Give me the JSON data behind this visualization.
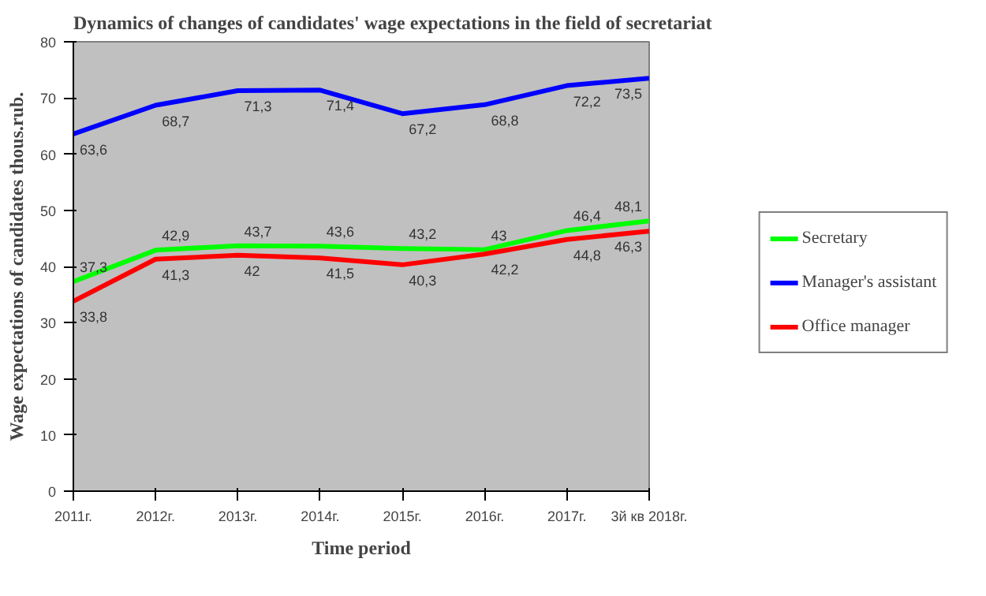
{
  "chart_data": {
    "type": "line",
    "title": "Dynamics of changes of candidates' wage expectations in the field of secretariat",
    "xlabel": "Time period",
    "ylabel": "Wage expectations of candidates thous.rub.",
    "categories": [
      "2011г.",
      "2012г.",
      "2013г.",
      "2014г.",
      "2015г.",
      "2016г.",
      "2017г.",
      "3й кв 2018г."
    ],
    "ylim": [
      0,
      80
    ],
    "yticks": [
      0,
      10,
      20,
      30,
      40,
      50,
      60,
      70,
      80
    ],
    "grid": false,
    "legend": "right",
    "marker": "none",
    "line_style": "solid",
    "series": [
      {
        "name": "Secretary",
        "color": "#00ff00",
        "values": [
          37.3,
          42.9,
          43.7,
          43.6,
          43.2,
          43,
          46.4,
          48.1
        ],
        "value_labels": [
          "37,3",
          "42,9",
          "43,7",
          "43,6",
          "43,2",
          "43",
          "46,4",
          "48,1"
        ]
      },
      {
        "name": "Manager's assistant",
        "color": "#0000ff",
        "values": [
          63.6,
          68.7,
          71.3,
          71.4,
          67.2,
          68.8,
          72.2,
          73.5
        ],
        "value_labels": [
          "63,6",
          "68,7",
          "71,3",
          "71,4",
          "67,2",
          "68,8",
          "72,2",
          "73,5"
        ]
      },
      {
        "name": "Office manager",
        "color": "#ff0000",
        "values": [
          33.8,
          41.3,
          42,
          41.5,
          40.3,
          42.2,
          44.8,
          46.3
        ],
        "value_labels": [
          "33,8",
          "41,3",
          "42",
          "41,5",
          "40,3",
          "42,2",
          "44,8",
          "46,3"
        ]
      }
    ]
  }
}
